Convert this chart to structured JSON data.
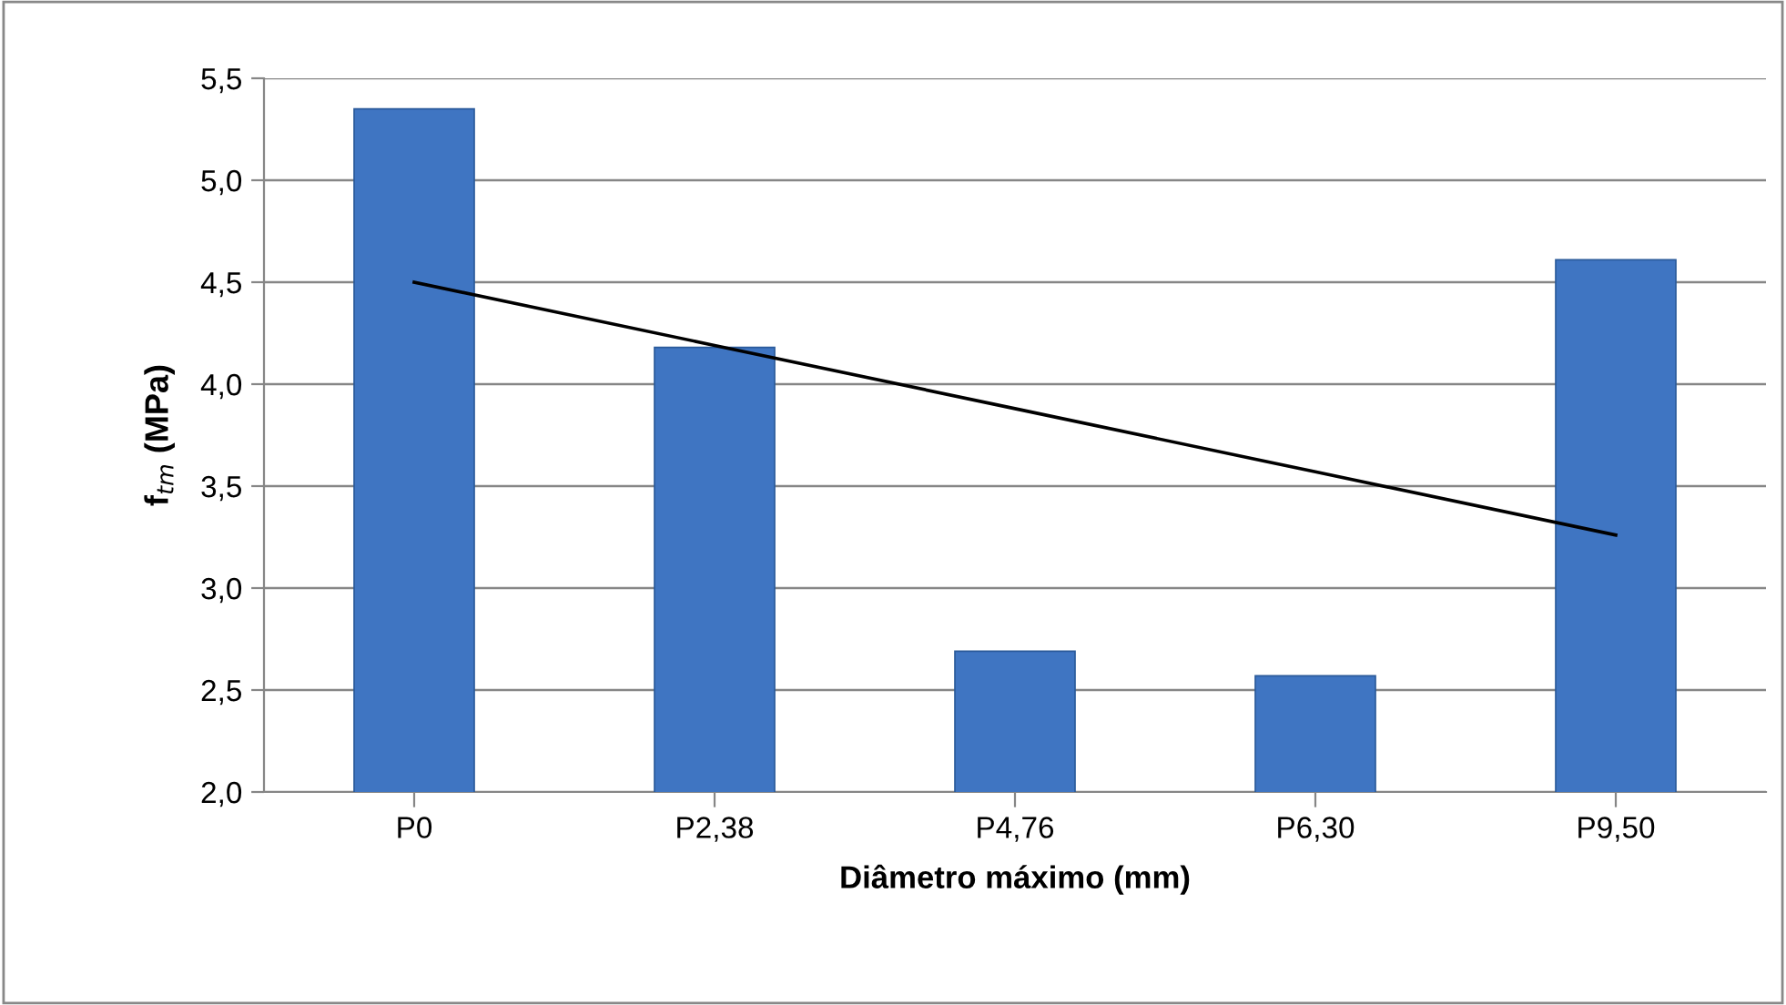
{
  "chart_data": {
    "type": "bar",
    "xlabel": "Diâmetro máximo (mm)",
    "ylabel": "f$_{tm}$ (MPa)",
    "categories": [
      "P0",
      "P2,38",
      "P4,76",
      "P6,30",
      "P9,50"
    ],
    "series": [
      {
        "color": "#3f75c2",
        "values": [
          5.35,
          4.18,
          2.69,
          2.57,
          4.61
        ]
      },
      {
        "type": "line",
        "color": "#000000",
        "values": [
          4.5,
          4.19,
          3.88,
          3.57,
          3.26
        ]
      }
    ],
    "ylim": [
      2.0,
      5.5
    ],
    "yticks": [
      {
        "value": 2.0,
        "label": "2,0"
      },
      {
        "value": 2.5,
        "label": "2,5"
      },
      {
        "value": 3.0,
        "label": "3,0"
      },
      {
        "value": 3.5,
        "label": "3,5"
      },
      {
        "value": 4.0,
        "label": "4,0"
      },
      {
        "value": 4.5,
        "label": "4,5"
      },
      {
        "value": 5.0,
        "label": "5,0"
      },
      {
        "value": 5.5,
        "label": "5,5"
      }
    ],
    "grid": "y",
    "legend": false
  }
}
